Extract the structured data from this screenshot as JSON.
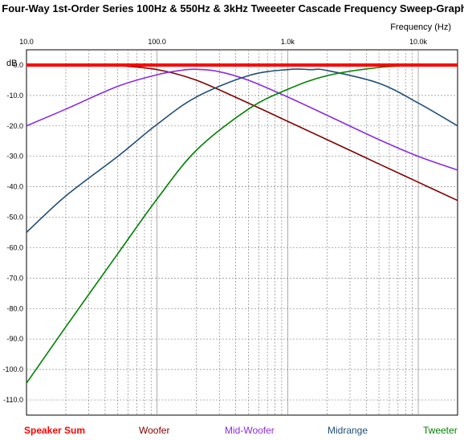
{
  "chart_data": {
    "type": "line",
    "title": "Four-Way 1st-Order Series 100Hz & 550Hz & 3kHz Tweeeter Cascade Frequency Sweep-Graph",
    "xlabel": "Frequency  (Hz)",
    "ylabel": "dB",
    "x_scale": "log",
    "xlim": [
      10,
      20000
    ],
    "ylim": [
      -115,
      5
    ],
    "x_ticks": [
      10,
      100,
      1000,
      10000
    ],
    "x_tick_labels": [
      "10.0",
      "100.0",
      "1.0k",
      "10.0k"
    ],
    "y_ticks": [
      0,
      -10,
      -20,
      -30,
      -40,
      -50,
      -60,
      -70,
      -80,
      -90,
      -100,
      -110
    ],
    "y_tick_labels": [
      "0.0",
      "-10.0",
      "-20.0",
      "-30.0",
      "-40.0",
      "-50.0",
      "-60.0",
      "-70.0",
      "-80.0",
      "-90.0",
      "-100.0",
      "-110.0"
    ],
    "grid": true,
    "legend_position": "bottom",
    "series": [
      {
        "name": "Speaker Sum",
        "color": "#ff0000",
        "x": [
          10,
          20000
        ],
        "y": [
          0,
          0
        ]
      },
      {
        "name": "Woofer",
        "color": "#800000",
        "x": [
          30,
          50,
          100,
          200,
          500,
          1000,
          2000,
          5000,
          10000,
          20000
        ],
        "y": [
          0,
          -0.2,
          -1.5,
          -5,
          -12.5,
          -18.5,
          -24.5,
          -32.5,
          -38.5,
          -44.5
        ]
      },
      {
        "name": "Mid-Woofer",
        "color": "#8a2be2",
        "x": [
          10,
          20,
          50,
          100,
          150,
          200,
          300,
          500,
          1000,
          2000,
          5000,
          10000,
          20000
        ],
        "y": [
          -20,
          -14.5,
          -7,
          -3.2,
          -1.8,
          -1.4,
          -2.2,
          -5,
          -10.5,
          -16.5,
          -24.5,
          -30,
          -34.5
        ]
      },
      {
        "name": "Midrange",
        "color": "#1f4e79",
        "x": [
          10,
          20,
          50,
          100,
          200,
          500,
          1000,
          1500,
          2000,
          5000,
          10000,
          20000
        ],
        "y": [
          -55,
          -43,
          -30,
          -19.5,
          -10.5,
          -3.5,
          -1.5,
          -1.5,
          -1.8,
          -6,
          -12.5,
          -20
        ]
      },
      {
        "name": "Tweeter",
        "color": "#008000",
        "x": [
          10,
          20,
          50,
          100,
          200,
          500,
          1000,
          2000,
          5000,
          10000,
          20000
        ],
        "y": [
          -104.5,
          -86,
          -62,
          -44,
          -28,
          -14.5,
          -8,
          -3.5,
          -0.8,
          -0.2,
          0
        ]
      }
    ]
  }
}
